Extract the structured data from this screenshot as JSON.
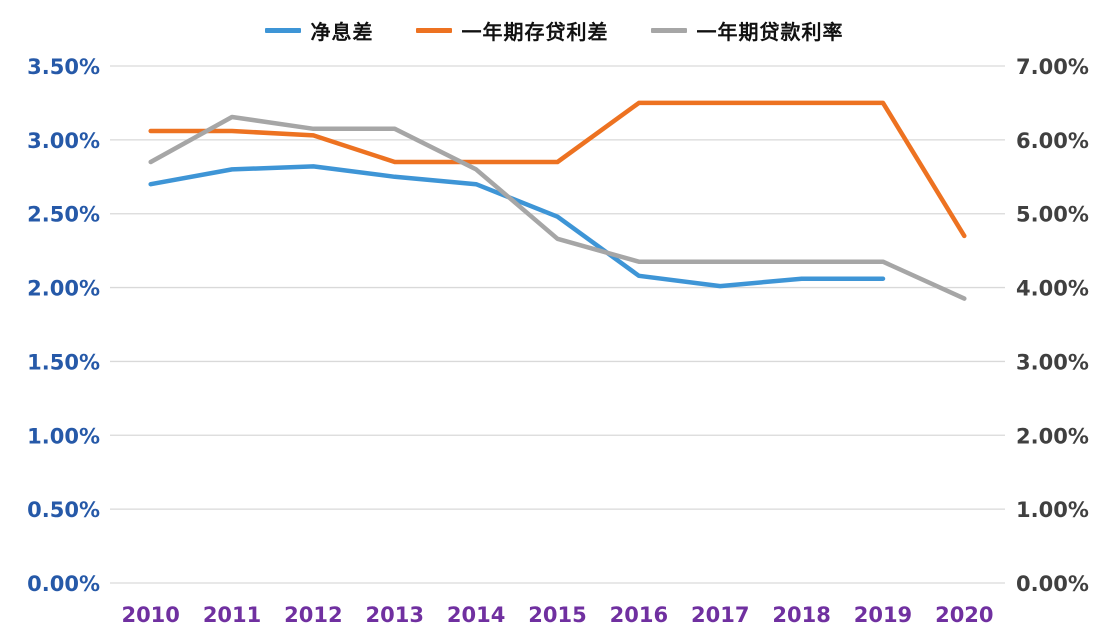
{
  "chart_data": {
    "type": "line",
    "title": "",
    "categories": [
      "2010",
      "2011",
      "2012",
      "2013",
      "2014",
      "2015",
      "2016",
      "2017",
      "2018",
      "2019",
      "2020"
    ],
    "series": [
      {
        "name": "净息差",
        "color": "#3E95D6",
        "axis": "left",
        "values": [
          2.7,
          2.8,
          2.82,
          2.75,
          2.7,
          2.48,
          2.08,
          2.01,
          2.06,
          2.06,
          null
        ]
      },
      {
        "name": "一年期存贷利差",
        "color": "#ED7221",
        "axis": "left",
        "values": [
          3.06,
          3.06,
          3.03,
          2.85,
          2.85,
          2.85,
          3.25,
          3.25,
          3.25,
          3.25,
          2.35
        ]
      },
      {
        "name": "一年期贷款利率",
        "color": "#A6A6A6",
        "axis": "right",
        "values": [
          5.7,
          6.31,
          6.15,
          6.15,
          5.6,
          4.66,
          4.35,
          4.35,
          4.35,
          4.35,
          3.85
        ]
      }
    ],
    "left_axis": {
      "min": 0,
      "max": 3.5,
      "step": 0.5,
      "tick_format": "percent2",
      "label_color": "#2659A8",
      "ticks": [
        "0.00%",
        "0.50%",
        "1.00%",
        "1.50%",
        "2.00%",
        "2.50%",
        "3.00%",
        "3.50%"
      ]
    },
    "right_axis": {
      "min": 0,
      "max": 7.0,
      "step": 1.0,
      "tick_format": "percent2",
      "label_color": "#404040",
      "ticks": [
        "0.00%",
        "1.00%",
        "2.00%",
        "3.00%",
        "4.00%",
        "5.00%",
        "6.00%",
        "7.00%"
      ]
    },
    "x_axis": {
      "label_color": "#7030A0"
    },
    "grid": true,
    "grid_color": "#D9D9D9",
    "legend_position": "top"
  }
}
